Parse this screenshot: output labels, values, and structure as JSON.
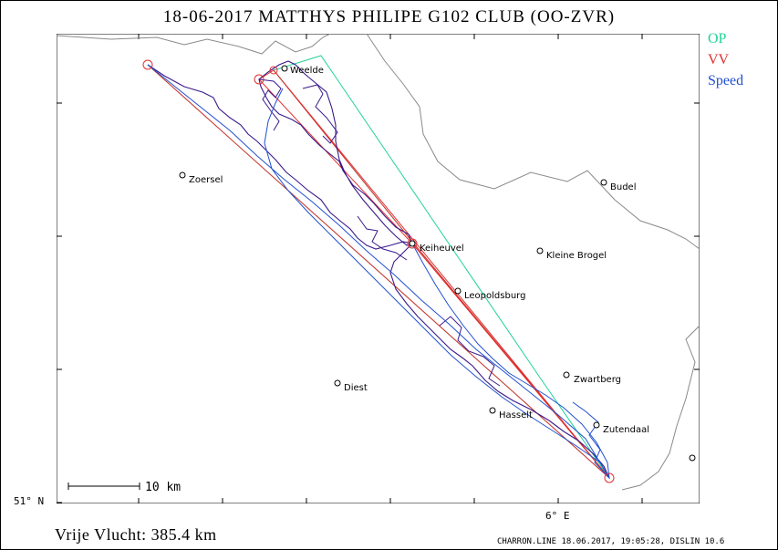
{
  "title": "18-06-2017    MATTHYS PHILIPE    G102 CLUB (OO-ZVR)",
  "legend": [
    {
      "label": "OP",
      "color": "#22d39a"
    },
    {
      "label": "VV",
      "color": "#e03030"
    },
    {
      "label": "Speed",
      "color": "#2050d0"
    }
  ],
  "scale_label": "10 km",
  "lat_label": "51° N",
  "lon_label": "6° E",
  "distance_label": "Vrije Vlucht:  385.4 km",
  "footer_credit": "CHARRON.LINE 18.06.2017, 19:05:28, DISLIN 10.6",
  "places": [
    {
      "name": "Weelde"
    },
    {
      "name": "Zoersel"
    },
    {
      "name": "Budel"
    },
    {
      "name": "Kleine Brogel"
    },
    {
      "name": "Leopoldsburg"
    },
    {
      "name": "Keiheuvel"
    },
    {
      "name": "Zwartberg"
    },
    {
      "name": "Diest"
    },
    {
      "name": "Hasselt"
    },
    {
      "name": "Zutendaal"
    }
  ],
  "colors": {
    "track": "#3a1a8a",
    "speed": "#2050d0",
    "op": "#22d39a",
    "vv": "#e03030",
    "border": "#8a8a8a"
  }
}
